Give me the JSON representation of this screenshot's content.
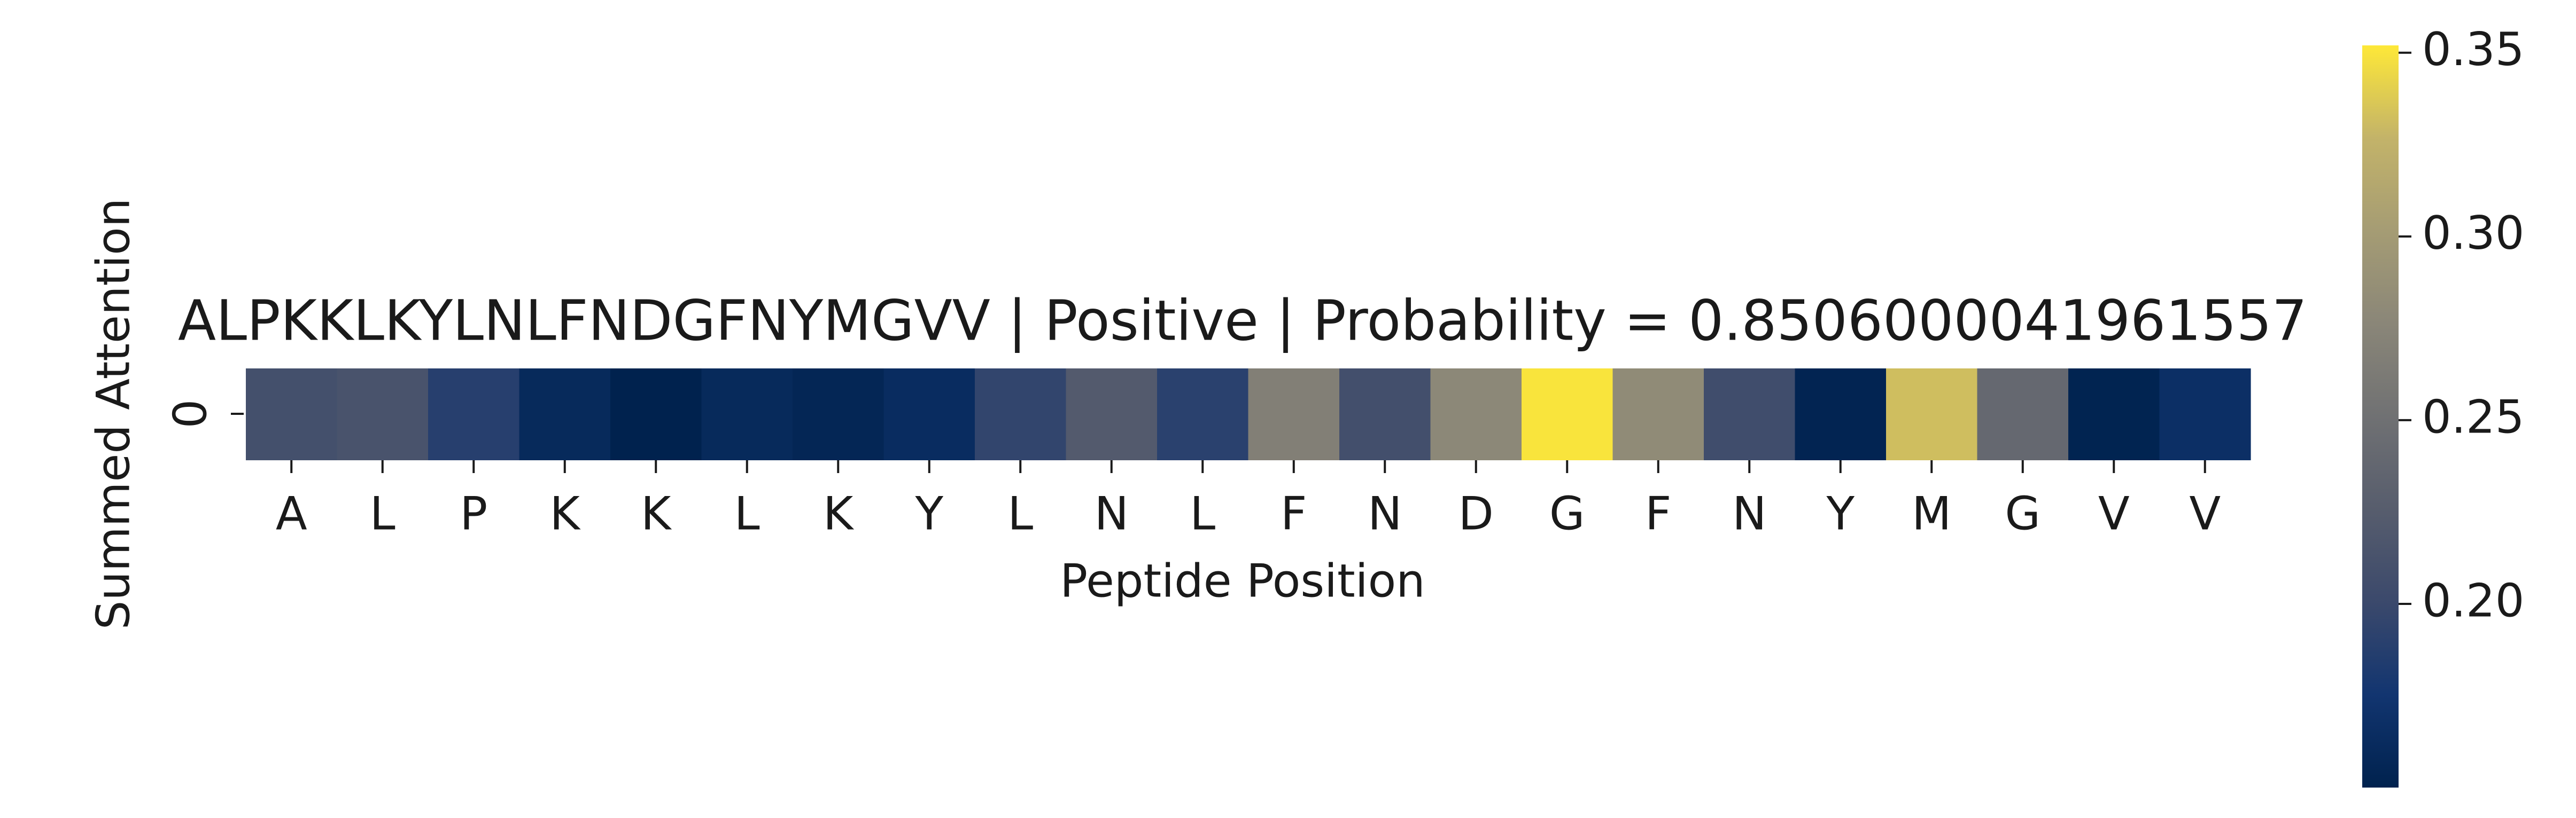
{
  "chart_data": {
    "type": "heatmap",
    "title": "ALPKKLKYLNLFNDGFNYMGVV | Positive | Probability = 0.8506000041961557",
    "xlabel": "Peptide Position",
    "ylabel": "Summed Attention",
    "row_labels": [
      "0"
    ],
    "categories": [
      "A",
      "L",
      "P",
      "K",
      "K",
      "L",
      "K",
      "Y",
      "L",
      "N",
      "L",
      "F",
      "N",
      "D",
      "G",
      "F",
      "N",
      "Y",
      "M",
      "G",
      "V",
      "V"
    ],
    "values": [
      0.209,
      0.213,
      0.188,
      0.16,
      0.15,
      0.16,
      0.155,
      0.163,
      0.195,
      0.222,
      0.19,
      0.268,
      0.208,
      0.278,
      0.35,
      0.282,
      0.205,
      0.153,
      0.332,
      0.24,
      0.152,
      0.167
    ],
    "colormap": "cividis",
    "colorbar": {
      "range": [
        0.15,
        0.352
      ],
      "ticks": [
        0.2,
        0.25,
        0.3,
        0.35
      ],
      "tick_labels": [
        "0.20",
        "0.25",
        "0.30",
        "0.35"
      ]
    }
  }
}
